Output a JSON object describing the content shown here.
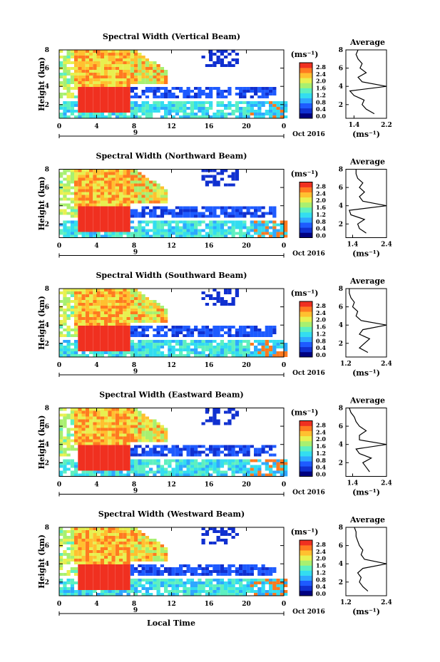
{
  "x_axis_label": "Local Time",
  "panels": [
    {
      "title": "Spectral Width (Vertical Beam)",
      "avg_xticks": [
        "1.4",
        "2.2"
      ]
    },
    {
      "title": "Spectral Width (Northward Beam)",
      "avg_xticks": [
        "1.4",
        "2.4"
      ]
    },
    {
      "title": "Spectral Width (Southward Beam)",
      "avg_xticks": [
        "1.2",
        "2.4"
      ]
    },
    {
      "title": "Spectral Width (Eastward Beam)",
      "avg_xticks": [
        "1.4",
        "2.4"
      ]
    },
    {
      "title": "Spectral Width (Westward Beam)",
      "avg_xticks": [
        "1.2",
        "2.4"
      ]
    }
  ],
  "common": {
    "ylabel": "Height (km)",
    "yticks": [
      "2",
      "4",
      "6",
      "8"
    ],
    "xticks": [
      "0",
      "4",
      "8",
      "12",
      "16",
      "20",
      "0"
    ],
    "date_day": "9",
    "date_label": "Oct 2016",
    "unit_label": "(ms⁻¹)",
    "avg_title": "Average",
    "avg_unit": "(ms⁻¹)",
    "avg_yticks": [
      "2",
      "4",
      "6",
      "8"
    ],
    "colorbar_ticks": [
      "0.0",
      "0.4",
      "0.8",
      "1.2",
      "1.6",
      "2.0",
      "2.4",
      "2.8"
    ]
  },
  "colors": {
    "scale": [
      "#000080",
      "#1030d0",
      "#1e5bff",
      "#2ea8ff",
      "#33ddf0",
      "#5ef0c0",
      "#a8f070",
      "#e8f050",
      "#ffc030",
      "#ff7a20",
      "#f03020"
    ],
    "high": "#f24030"
  },
  "chart_data": [
    {
      "type": "heatmap",
      "title": "Spectral Width (Vertical Beam)",
      "x_range": [
        0,
        24
      ],
      "y_range": [
        0.5,
        8
      ],
      "colorbar_range": [
        0,
        2.8
      ],
      "average_profile": {
        "x_range": [
          1.2,
          2.2
        ],
        "heights": [
          1.0,
          1.5,
          2.0,
          2.5,
          3.0,
          3.5,
          4.0,
          4.5,
          5.0,
          5.5,
          6.0,
          6.5,
          7.0,
          7.5,
          8.0
        ],
        "values": [
          1.9,
          1.7,
          1.6,
          1.65,
          1.4,
          1.3,
          2.2,
          1.6,
          1.5,
          1.7,
          1.55,
          1.6,
          1.5,
          1.45,
          1.5
        ]
      }
    },
    {
      "type": "heatmap",
      "title": "Spectral Width (Northward Beam)",
      "x_range": [
        0,
        24
      ],
      "y_range": [
        0.5,
        8
      ],
      "colorbar_range": [
        0,
        2.8
      ],
      "average_profile": {
        "x_range": [
          1.2,
          2.4
        ],
        "heights": [
          1.0,
          1.5,
          2.0,
          2.5,
          3.0,
          3.5,
          4.0,
          4.5,
          5.0,
          5.5,
          6.0,
          6.5,
          7.0,
          7.5,
          8.0
        ],
        "values": [
          1.8,
          1.6,
          1.55,
          1.75,
          1.35,
          1.3,
          2.4,
          1.7,
          1.6,
          1.75,
          1.6,
          1.7,
          1.55,
          1.5,
          1.5
        ]
      }
    },
    {
      "type": "heatmap",
      "title": "Spectral Width (Southward Beam)",
      "x_range": [
        0,
        24
      ],
      "y_range": [
        0.5,
        8
      ],
      "colorbar_range": [
        0,
        2.8
      ],
      "average_profile": {
        "x_range": [
          1.2,
          2.4
        ],
        "heights": [
          1.0,
          1.5,
          2.0,
          2.5,
          3.0,
          3.5,
          4.0,
          4.5,
          5.0,
          5.5,
          6.0,
          6.5,
          7.0,
          7.5,
          8.0
        ],
        "values": [
          1.85,
          1.6,
          1.75,
          1.9,
          1.6,
          1.7,
          2.4,
          1.65,
          1.5,
          1.55,
          1.4,
          1.45,
          1.35,
          1.3,
          1.3
        ]
      }
    },
    {
      "type": "heatmap",
      "title": "Spectral Width (Eastward Beam)",
      "x_range": [
        0,
        24
      ],
      "y_range": [
        0.5,
        8
      ],
      "colorbar_range": [
        0,
        2.8
      ],
      "average_profile": {
        "x_range": [
          1.2,
          2.4
        ],
        "heights": [
          1.0,
          1.5,
          2.0,
          2.5,
          3.0,
          3.5,
          4.0,
          4.5,
          5.0,
          5.5,
          6.0,
          6.5,
          7.0,
          7.5,
          8.0
        ],
        "values": [
          1.9,
          1.8,
          1.7,
          1.95,
          1.6,
          1.5,
          2.4,
          1.6,
          1.6,
          1.8,
          1.6,
          1.5,
          1.45,
          1.35,
          1.3
        ]
      }
    },
    {
      "type": "heatmap",
      "title": "Spectral Width (Westward Beam)",
      "x_range": [
        0,
        24
      ],
      "y_range": [
        0.5,
        8
      ],
      "colorbar_range": [
        0,
        2.8
      ],
      "average_profile": {
        "x_range": [
          1.2,
          2.4
        ],
        "heights": [
          1.0,
          1.5,
          2.0,
          2.5,
          3.0,
          3.5,
          4.0,
          4.5,
          5.0,
          5.5,
          6.0,
          6.5,
          7.0,
          7.5,
          8.0
        ],
        "values": [
          1.85,
          1.7,
          1.6,
          1.65,
          1.55,
          1.7,
          2.4,
          1.75,
          1.65,
          1.7,
          1.6,
          1.55,
          1.5,
          1.5,
          1.45
        ]
      }
    }
  ]
}
